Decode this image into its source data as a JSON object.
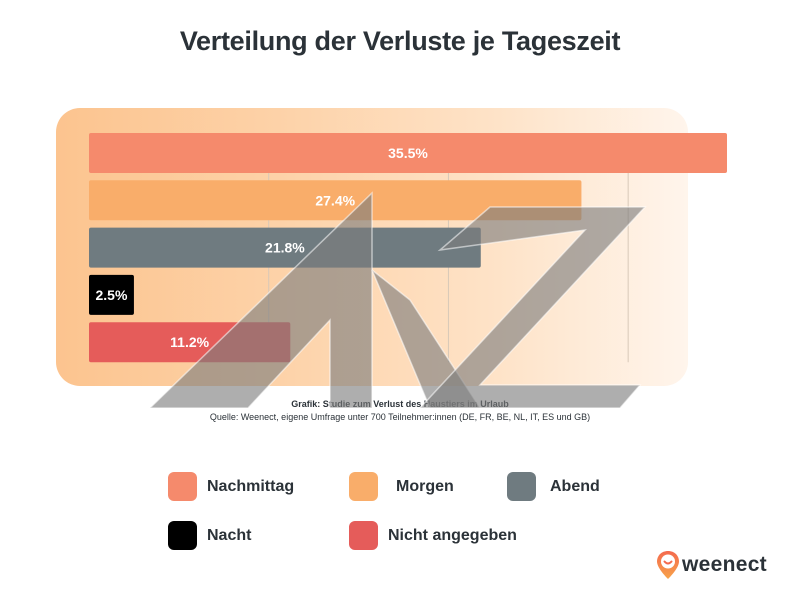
{
  "title": "Verteilung der Verluste je Tageszeit",
  "chart_data": {
    "type": "bar",
    "orientation": "horizontal",
    "title": "Verteilung der Verluste je Tageszeit",
    "categories": [
      "Nachmittag",
      "Morgen",
      "Abend",
      "Nacht",
      "Nicht angegeben"
    ],
    "values": [
      35.5,
      27.4,
      21.8,
      2.5,
      11.2
    ],
    "data_labels": [
      "35.5%",
      "27.4%",
      "21.8%",
      "2.5%",
      "11.2%"
    ],
    "colors": [
      "#f58a6c",
      "#f9ad6a",
      "#6f7b80",
      "#000000",
      "#e55c5a"
    ],
    "xlim": [
      0,
      40
    ],
    "gridlines_at": [
      10,
      20,
      30
    ],
    "grid": true,
    "xlabel": "",
    "ylabel": "",
    "unit": "%",
    "legend_position": "bottom"
  },
  "source": {
    "line1": "Grafik: Studie zum Verlust des Haustiers im Urlaub",
    "line2": "Quelle: Weenect, eigene Umfrage unter 700 Teilnehmer:innen (DE, FR, BE, NL, IT, ES und GB)"
  },
  "legend": [
    {
      "label": "Nachmittag",
      "color": "#f58a6c"
    },
    {
      "label": "Morgen",
      "color": "#f9ad6a"
    },
    {
      "label": "Abend",
      "color": "#6f7b80"
    },
    {
      "label": "Nacht",
      "color": "#000000"
    },
    {
      "label": "Nicht angegeben",
      "color": "#e55c5a"
    }
  ],
  "logo": {
    "text": "weenect",
    "icon": "location-pin-smile-icon",
    "color": "#f26b4f"
  },
  "watermark": {
    "text": "AKZ",
    "color": "#7d7d7d"
  }
}
